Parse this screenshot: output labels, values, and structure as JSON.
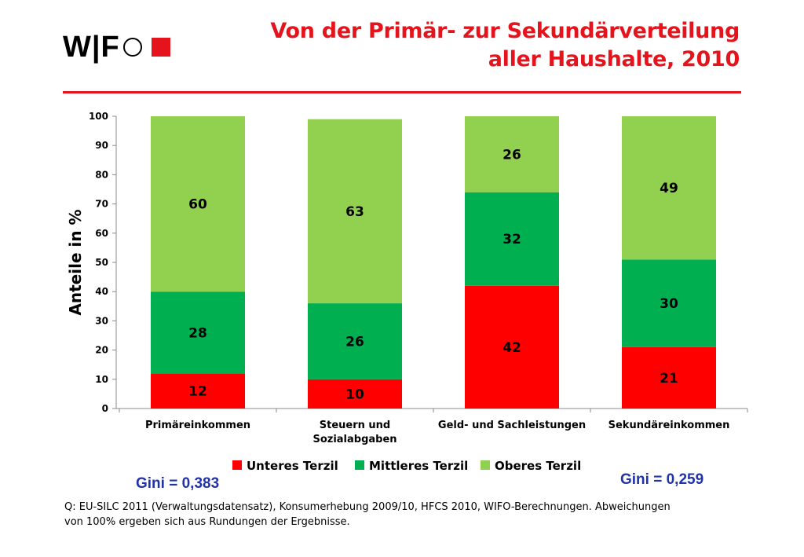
{
  "header": {
    "logo_text": "W|F",
    "title_line1": "Von der Primär- zur Sekundärverteilung",
    "title_line2": "aller Haushalte, 2010"
  },
  "colors": {
    "brand_red": "#e5141c",
    "gini_blue": "#2233aa"
  },
  "chart_data": {
    "type": "bar",
    "stacked": true,
    "title": "",
    "xlabel": "",
    "ylabel": "Anteile in %",
    "ylim": [
      0,
      100
    ],
    "yticks": [
      0,
      10,
      20,
      30,
      40,
      50,
      60,
      70,
      80,
      90,
      100
    ],
    "categories": [
      [
        "Primäreinkommen"
      ],
      [
        "Steuern und",
        "Sozialabgaben"
      ],
      [
        "Geld- und Sachleistungen"
      ],
      [
        "Sekundäreinkommen"
      ]
    ],
    "series": [
      {
        "name": "Unteres Terzil",
        "color": "#ff0000",
        "values": [
          12,
          10,
          42,
          21
        ]
      },
      {
        "name": "Mittleres Terzil",
        "color": "#00b050",
        "values": [
          28,
          26,
          32,
          30
        ]
      },
      {
        "name": "Oberes Terzil",
        "color": "#92d050",
        "values": [
          60,
          63,
          26,
          49
        ]
      }
    ],
    "grid": false,
    "legend_position": "bottom"
  },
  "annotations": {
    "gini_left": "Gini = 0,383",
    "gini_right": "Gini = 0,259"
  },
  "footer": {
    "source_line1": "Q: EU-SILC 2011 (Verwaltungsdatensatz), Konsumerhebung 2009/10, HFCS 2010, WIFO-Berechnungen. Abweichungen",
    "source_line2": "von 100% ergeben sich aus Rundungen der Ergebnisse."
  }
}
